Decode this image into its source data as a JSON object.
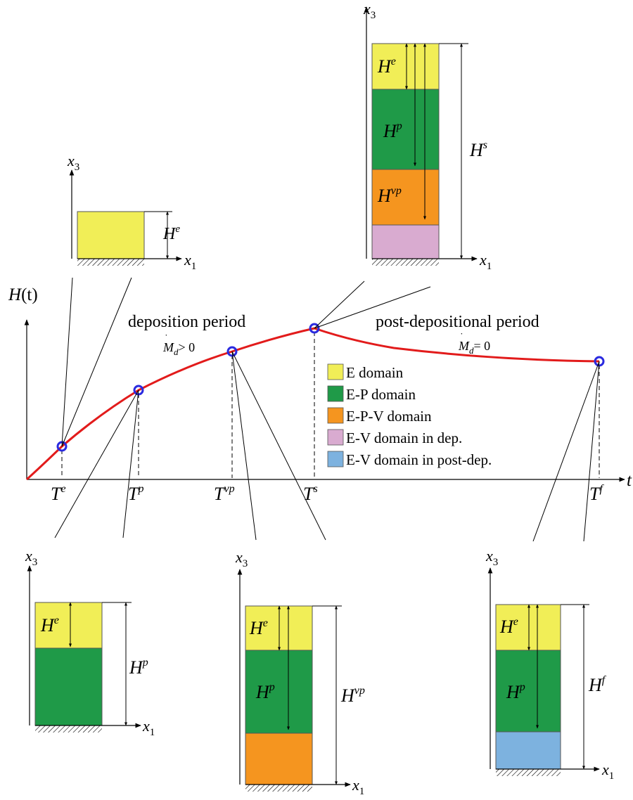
{
  "colors": {
    "E": "#f1ee57",
    "EP": "#1f9a48",
    "EPV": "#f5951f",
    "EVdep": "#d9abd0",
    "EVpost": "#7db2df",
    "curve": "#e21b1b",
    "marker": "#2a2adf"
  },
  "axis": {
    "y_label": "H",
    "y_label_arg": "(t)",
    "x_label": "t",
    "x3": "x",
    "x3_sub": "3",
    "x1": "x",
    "x1_sub": "1"
  },
  "periods": {
    "deposition": "deposition period",
    "deposition_rate": "> 0",
    "post": "post-depositional period",
    "post_rate": "= 0",
    "rate_sym": "M",
    "rate_sub": "d"
  },
  "times": [
    {
      "base": "T",
      "sup": "e"
    },
    {
      "base": "T",
      "sup": "p"
    },
    {
      "base": "T",
      "sup": "vp"
    },
    {
      "base": "T",
      "sup": "s"
    },
    {
      "base": "T",
      "sup": "f"
    }
  ],
  "heights": {
    "base": "H",
    "He": "e",
    "Hp": "p",
    "Hvp": "vp",
    "Hs": "s",
    "Hf": "f"
  },
  "legend": [
    {
      "label": "E domain",
      "color": "E"
    },
    {
      "label": "E-P domain",
      "color": "EP"
    },
    {
      "label": "E-P-V domain",
      "color": "EPV"
    },
    {
      "label": "E-V domain in dep.",
      "color": "EVdep"
    },
    {
      "label": "E-V domain in post-dep.",
      "color": "EVpost"
    }
  ]
}
